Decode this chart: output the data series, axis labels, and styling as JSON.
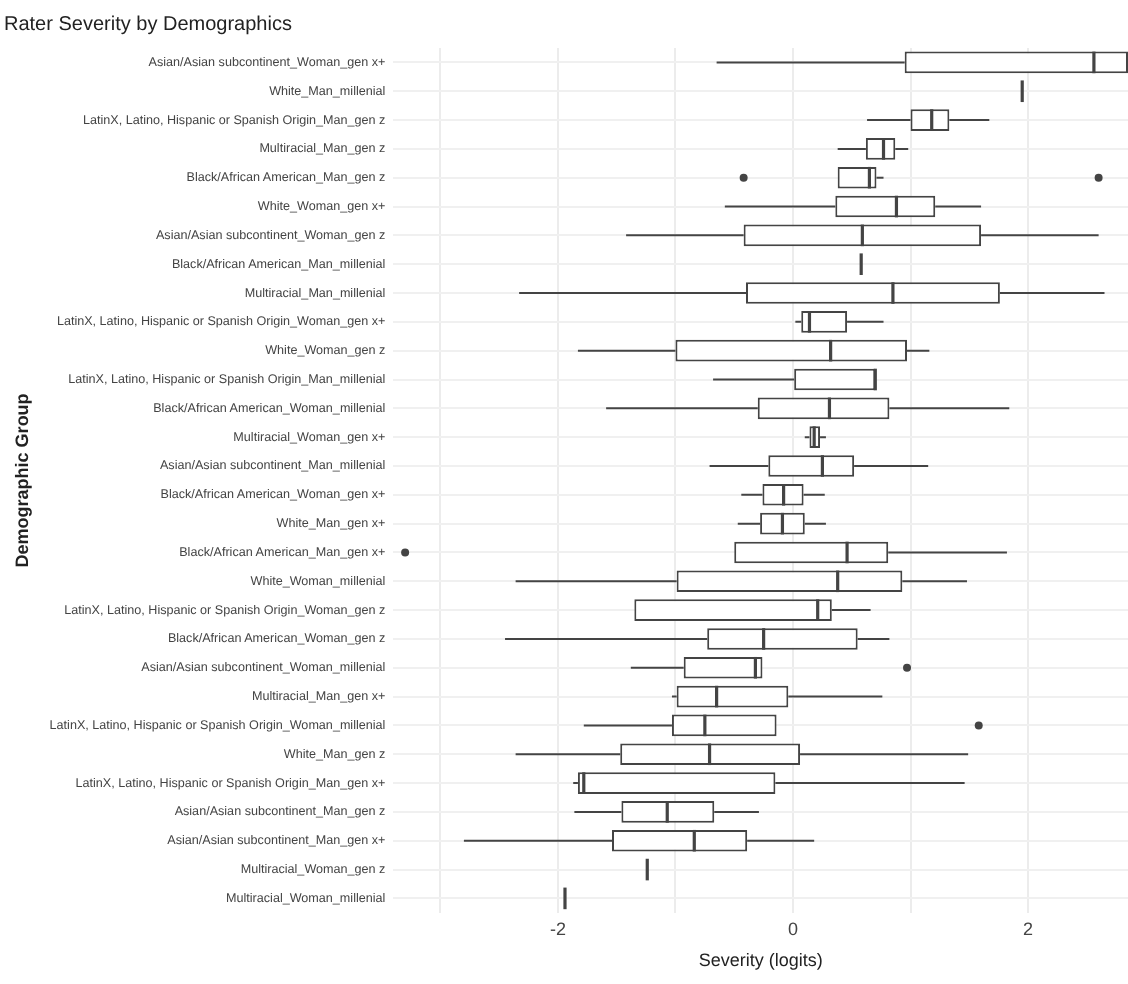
{
  "chart_data": {
    "type": "box",
    "orientation": "horizontal",
    "title": "Rater Severity by Demographics",
    "xlabel": "Severity (logits)",
    "ylabel": "Demographic Group",
    "color": "#444444",
    "grid": true,
    "categories": [
      "Asian/Asian subcontinent_Woman_gen x+",
      "White_Man_millenial",
      "LatinX, Latino, Hispanic or Spanish Origin_Man_gen z",
      "Multiracial_Man_gen z",
      "Black/African American_Man_gen z",
      "White_Woman_gen x+",
      "Asian/Asian subcontinent_Woman_gen z",
      "Black/African American_Man_millenial",
      "Multiracial_Man_millenial",
      "LatinX, Latino, Hispanic or Spanish Origin_Woman_gen x+",
      "White_Woman_gen z",
      "LatinX, Latino, Hispanic or Spanish Origin_Man_millenial",
      "Black/African American_Woman_millenial",
      "Multiracial_Woman_gen x+",
      "Asian/Asian subcontinent_Man_millenial",
      "Black/African American_Woman_gen x+",
      "White_Man_gen x+",
      "Black/African American_Man_gen x+",
      "White_Woman_millenial",
      "LatinX, Latino, Hispanic or Spanish Origin_Woman_gen z",
      "Black/African American_Woman_gen z",
      "Asian/Asian subcontinent_Woman_millenial",
      "Multiracial_Man_gen x+",
      "LatinX, Latino, Hispanic or Spanish Origin_Woman_millenial",
      "White_Man_gen z",
      "LatinX, Latino, Hispanic or Spanish Origin_Man_gen x+",
      "Asian/Asian subcontinent_Man_gen z",
      "Asian/Asian subcontinent_Man_gen x+",
      "Multiracial_Woman_gen z",
      "Multiracial_Woman_millenial"
    ],
    "boxes": [
      {
        "low": -0.65,
        "q1": 0.95,
        "median": 2.56,
        "q3": 2.85,
        "high": 2.85
      },
      {
        "low": 1.95,
        "q1": 1.95,
        "median": 1.95,
        "q3": 1.95,
        "high": 1.95
      },
      {
        "low": 0.63,
        "q1": 1.0,
        "median": 1.18,
        "q3": 1.33,
        "high": 1.67
      },
      {
        "low": 0.38,
        "q1": 0.62,
        "median": 0.77,
        "q3": 0.87,
        "high": 0.98
      },
      {
        "low": 0.38,
        "q1": 0.38,
        "median": 0.65,
        "q3": 0.71,
        "high": 0.77,
        "outliers": [
          -0.42,
          2.6
        ]
      },
      {
        "low": -0.58,
        "q1": 0.36,
        "median": 0.88,
        "q3": 1.21,
        "high": 1.6
      },
      {
        "low": -1.42,
        "q1": -0.42,
        "median": 0.59,
        "q3": 1.6,
        "high": 2.6
      },
      {
        "low": 0.58,
        "q1": 0.58,
        "median": 0.58,
        "q3": 0.58,
        "high": 0.58
      },
      {
        "low": -2.33,
        "q1": -0.4,
        "median": 0.85,
        "q3": 1.76,
        "high": 2.65
      },
      {
        "low": 0.02,
        "q1": 0.07,
        "median": 0.14,
        "q3": 0.46,
        "high": 0.77
      },
      {
        "low": -1.83,
        "q1": -1.0,
        "median": 0.32,
        "q3": 0.97,
        "high": 1.16
      },
      {
        "low": -0.68,
        "q1": 0.01,
        "median": 0.7,
        "q3": 0.7,
        "high": 0.7
      },
      {
        "low": -1.59,
        "q1": -0.3,
        "median": 0.31,
        "q3": 0.82,
        "high": 1.84
      },
      {
        "low": 0.1,
        "q1": 0.14,
        "median": 0.18,
        "q3": 0.23,
        "high": 0.28
      },
      {
        "low": -0.71,
        "q1": -0.21,
        "median": 0.25,
        "q3": 0.52,
        "high": 1.15
      },
      {
        "low": -0.44,
        "q1": -0.26,
        "median": -0.08,
        "q3": 0.09,
        "high": 0.27
      },
      {
        "low": -0.47,
        "q1": -0.28,
        "median": -0.09,
        "q3": 0.1,
        "high": 0.28
      },
      {
        "low": -0.5,
        "q1": -0.5,
        "median": 0.46,
        "q3": 0.81,
        "high": 1.82,
        "outliers": [
          -3.3
        ]
      },
      {
        "low": -2.36,
        "q1": -0.99,
        "median": 0.38,
        "q3": 0.93,
        "high": 1.48
      },
      {
        "low": -1.35,
        "q1": -1.35,
        "median": 0.21,
        "q3": 0.33,
        "high": 0.66
      },
      {
        "low": -2.45,
        "q1": -0.73,
        "median": -0.25,
        "q3": 0.55,
        "high": 0.82
      },
      {
        "low": -1.38,
        "q1": -0.93,
        "median": -0.32,
        "q3": -0.26,
        "high": -0.26,
        "outliers": [
          0.97
        ]
      },
      {
        "low": -1.03,
        "q1": -0.99,
        "median": -0.65,
        "q3": -0.04,
        "high": 0.76
      },
      {
        "low": -1.78,
        "q1": -1.03,
        "median": -0.75,
        "q3": -0.14,
        "high": -0.14,
        "outliers": [
          1.58
        ]
      },
      {
        "low": -2.36,
        "q1": -1.47,
        "median": -0.71,
        "q3": 0.06,
        "high": 1.49
      },
      {
        "low": -1.87,
        "q1": -1.83,
        "median": -1.78,
        "q3": -0.15,
        "high": 1.46
      },
      {
        "low": -1.86,
        "q1": -1.46,
        "median": -1.07,
        "q3": -0.67,
        "high": -0.29
      },
      {
        "low": -2.8,
        "q1": -1.54,
        "median": -0.84,
        "q3": -0.39,
        "high": 0.18
      },
      {
        "low": -1.24,
        "q1": -1.24,
        "median": -1.24,
        "q3": -1.24,
        "high": -1.24
      },
      {
        "low": -1.94,
        "q1": -1.94,
        "median": -1.94,
        "q3": -1.94,
        "high": -1.94
      }
    ],
    "xlim": [
      -3.4,
      2.85
    ],
    "xticks": [
      {
        "value": -3,
        "label": null
      },
      -2,
      {
        "value": -1,
        "label": null
      },
      0,
      {
        "value": 1,
        "label": null
      },
      2
    ]
  }
}
